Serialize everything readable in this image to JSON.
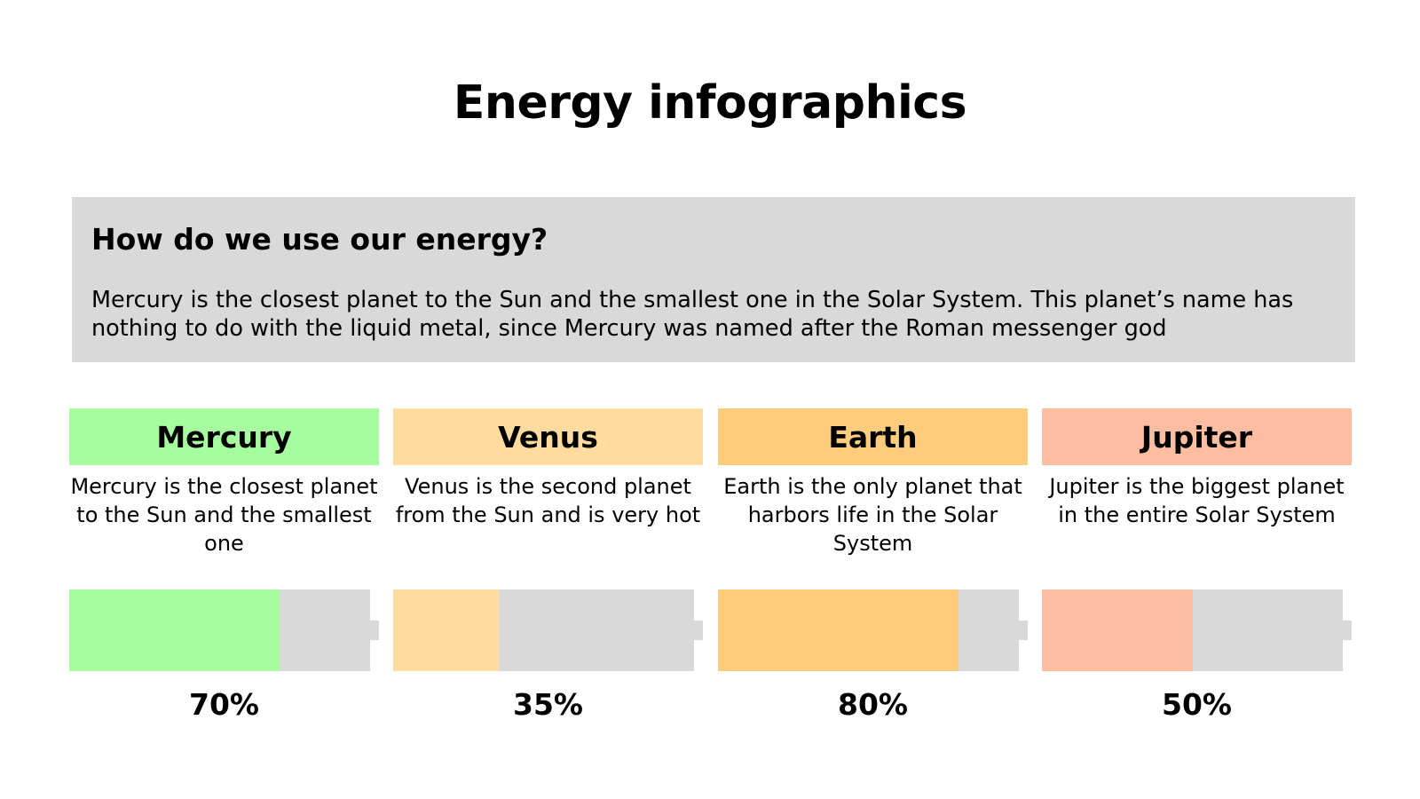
{
  "title": "Energy infographics",
  "intro": {
    "heading": "How do we use our energy?",
    "text": "Mercury is the closest planet to the Sun and the smallest one in the Solar System. This planet’s name has nothing to do with the liquid metal, since Mercury was named after the Roman messenger god"
  },
  "cards": [
    {
      "name": "Mercury",
      "description": "Mercury is the closest planet to the Sun and the smallest one",
      "percent_label": "70%",
      "level": 0.7,
      "color": "#a8fca0"
    },
    {
      "name": "Venus",
      "description": "Venus is the second planet from the Sun and is very hot",
      "percent_label": "35%",
      "level": 0.35,
      "color": "#fedb9f"
    },
    {
      "name": "Earth",
      "description": "Earth is the only planet that harbors life in the Solar System",
      "percent_label": "80%",
      "level": 0.8,
      "color": "#fdcc7c"
    },
    {
      "name": "Jupiter",
      "description": "Jupiter is the biggest planet in the entire Solar System",
      "percent_label": "50%",
      "level": 0.5,
      "color": "#fdbda1"
    }
  ],
  "colors": {
    "panel": "#d9d9d9",
    "text": "#000000",
    "background": "#ffffff"
  }
}
